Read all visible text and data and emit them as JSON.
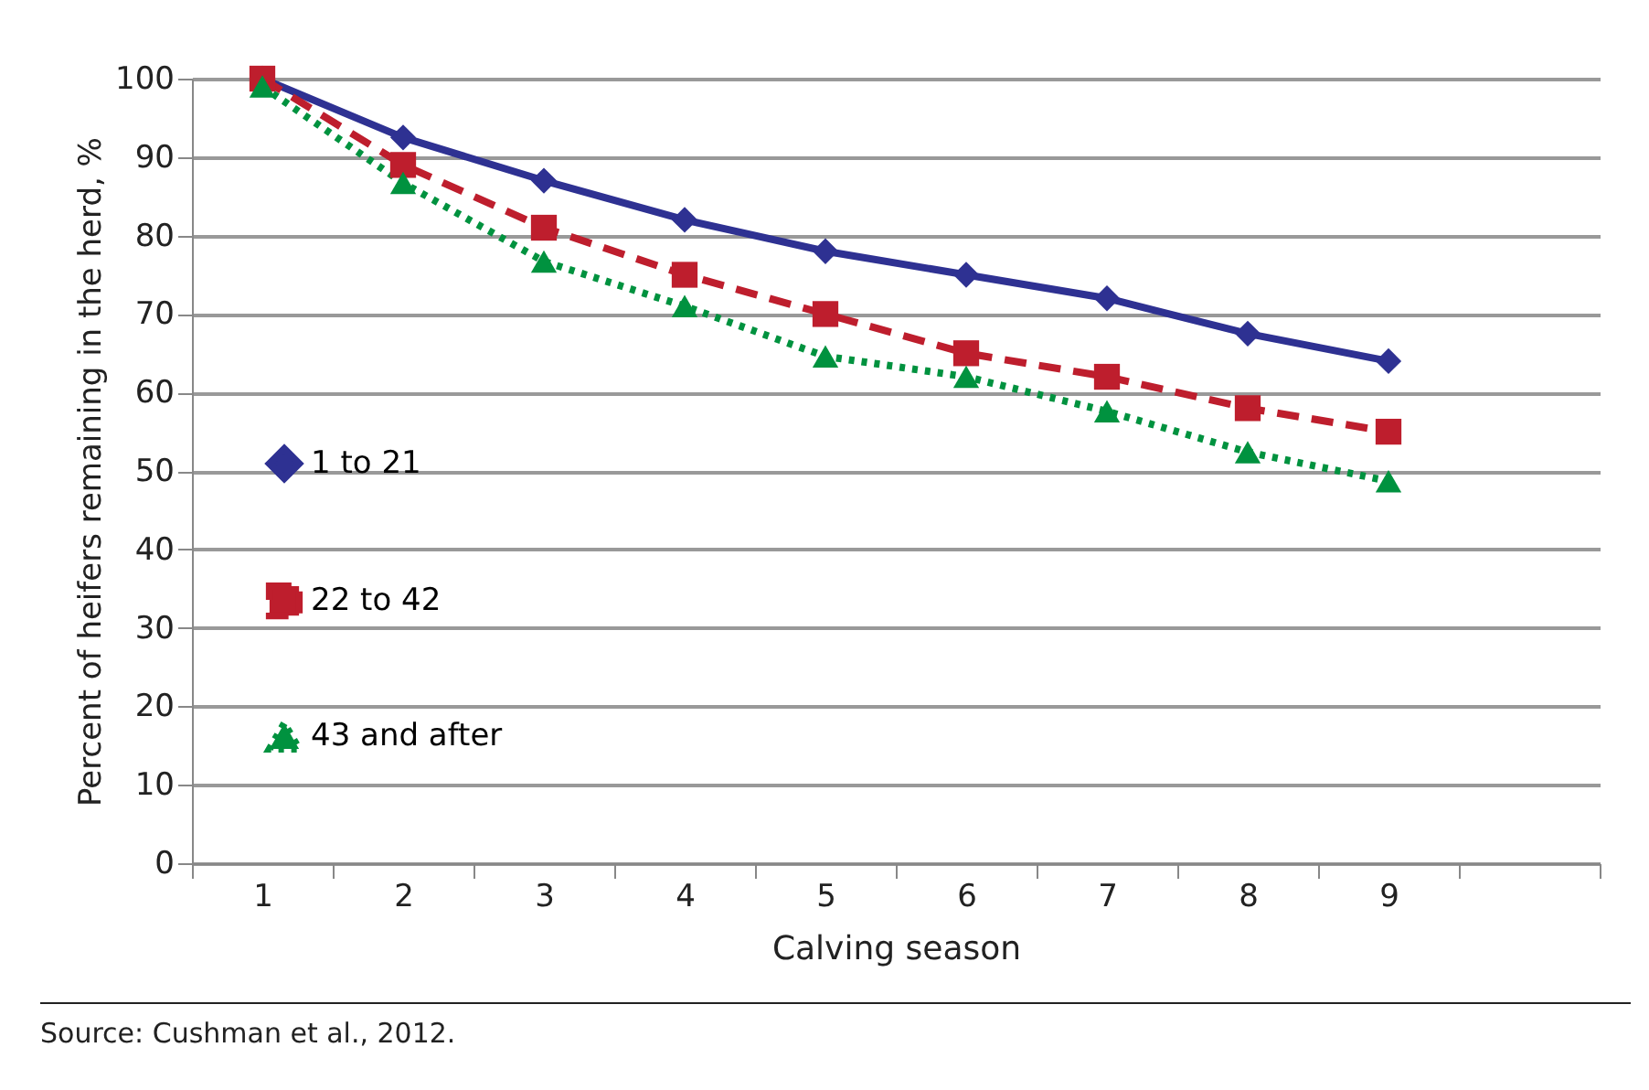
{
  "chart_data": {
    "type": "line",
    "xlabel": "Calving season",
    "ylabel": "Percent of heifers remaining in the herd, %",
    "categories": [
      "1",
      "2",
      "3",
      "4",
      "5",
      "6",
      "7",
      "8",
      "9",
      null
    ],
    "series": [
      {
        "name": "1 to 21",
        "color": "#2e3192",
        "marker": "diamond",
        "line_style": "solid",
        "values": [
          100,
          92.5,
          87,
          82,
          78,
          75,
          72,
          67.5,
          64,
          null
        ]
      },
      {
        "name": "22 to 42",
        "color": "#be1e2d",
        "marker": "square",
        "line_style": "dashed",
        "values": [
          100,
          89,
          81,
          75,
          70,
          65,
          62,
          58,
          55,
          null
        ]
      },
      {
        "name": "43 and after",
        "color": "#00923f",
        "marker": "triangle",
        "line_style": "dotted",
        "values": [
          99,
          86.7,
          76.7,
          71,
          64.6,
          62,
          57.6,
          52.4,
          48.7,
          null
        ]
      }
    ],
    "ylim": [
      0,
      100
    ],
    "yticks": [
      0,
      10,
      20,
      30,
      40,
      50,
      60,
      70,
      80,
      90,
      100
    ],
    "grid": "y",
    "legend": "left",
    "annotations": [
      "Source: Cushman et al., 2012."
    ]
  }
}
